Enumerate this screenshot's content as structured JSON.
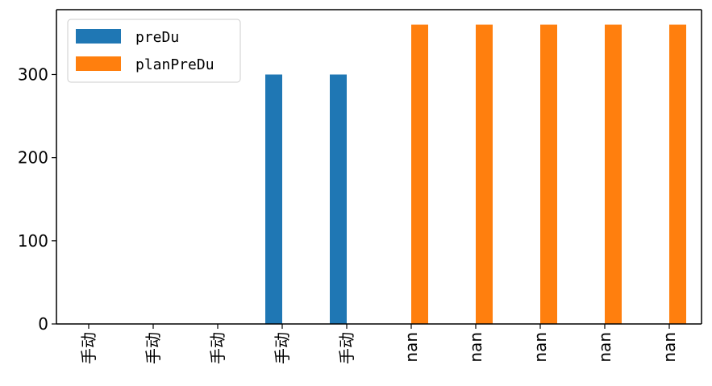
{
  "chart_data": {
    "type": "bar",
    "categories": [
      "手动",
      "手动",
      "手动",
      "手动",
      "手动",
      "nan",
      "nan",
      "nan",
      "nan",
      "nan"
    ],
    "series": [
      {
        "name": "preDu",
        "values": [
          0,
          0,
          0,
          300,
          300,
          0,
          0,
          0,
          0,
          0
        ],
        "color": "#1f77b4"
      },
      {
        "name": "planPreDu",
        "values": [
          0,
          0,
          0,
          0,
          0,
          360,
          360,
          360,
          360,
          360
        ],
        "color": "#ff7f0e"
      }
    ],
    "y_ticks": [
      0,
      100,
      200,
      300
    ],
    "ylim": [
      0,
      378
    ],
    "legend": {
      "placement": "top-left"
    },
    "grid": false,
    "title": "",
    "xlabel": "",
    "ylabel": ""
  }
}
